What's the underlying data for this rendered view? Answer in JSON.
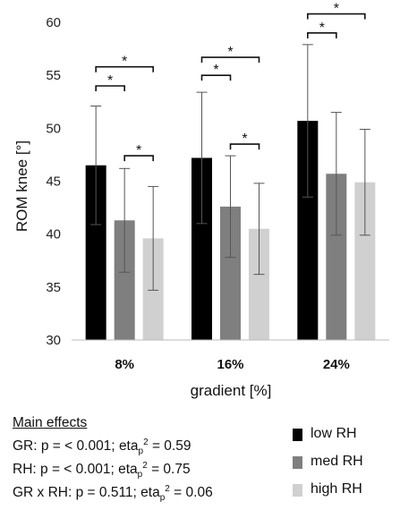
{
  "chart_data": {
    "type": "bar",
    "title": "",
    "xlabel": "gradient [%]",
    "ylabel": "ROM knee [°]",
    "ylim": [
      30,
      60
    ],
    "yticks": [
      "30",
      "35",
      "40",
      "45",
      "50",
      "55",
      "60"
    ],
    "categories": [
      "8%",
      "16%",
      "24%"
    ],
    "series": [
      {
        "name": "low RH",
        "color": "#000000",
        "values": [
          46.5,
          47.2,
          50.7
        ],
        "sd": [
          5.6,
          6.2,
          7.2
        ]
      },
      {
        "name": "med RH",
        "color": "#7f7f7f",
        "values": [
          41.3,
          42.6,
          45.7
        ],
        "sd": [
          4.9,
          4.8,
          5.8
        ]
      },
      {
        "name": "high RH",
        "color": "#d0d0d0",
        "values": [
          39.6,
          40.5,
          44.9
        ],
        "sd": [
          4.9,
          4.3,
          5.0
        ]
      }
    ],
    "significance_marks": [
      {
        "category": "8%",
        "from": "low RH",
        "to": "med RH",
        "label": "*",
        "y": 54.0
      },
      {
        "category": "8%",
        "from": "low RH",
        "to": "high RH",
        "label": "*",
        "y": 55.8
      },
      {
        "category": "8%",
        "from": "med RH",
        "to": "high RH",
        "label": "*",
        "y": 47.4
      },
      {
        "category": "16%",
        "from": "low RH",
        "to": "med RH",
        "label": "*",
        "y": 55.0
      },
      {
        "category": "16%",
        "from": "low RH",
        "to": "high RH",
        "label": "*",
        "y": 56.7
      },
      {
        "category": "16%",
        "from": "med RH",
        "to": "high RH",
        "label": "*",
        "y": 48.5
      },
      {
        "category": "24%",
        "from": "low RH",
        "to": "med RH",
        "label": "*",
        "y": 59.0
      },
      {
        "category": "24%",
        "from": "low RH",
        "to": "high RH",
        "label": "*",
        "y": 60.8
      }
    ],
    "grid": false,
    "legend": "bottom-right"
  },
  "main_effects": {
    "title": "Main effects",
    "rows": [
      {
        "label": "GR:",
        "p_text": "p = < 0.001;",
        "eta": "eta",
        "eta_sub": "p",
        "eta_sup": "2",
        "eta_value": "= 0.59"
      },
      {
        "label": "RH:",
        "p_text": " p = < 0.001;",
        "eta": "eta",
        "eta_sub": "p",
        "eta_sup": "2",
        "eta_value": "= 0.75"
      },
      {
        "label": "GR x RH:",
        "p_text": "p = 0.511;",
        "eta": "eta",
        "eta_sub": "p",
        "eta_sup": "2",
        "eta_value": "= 0.06"
      }
    ]
  }
}
